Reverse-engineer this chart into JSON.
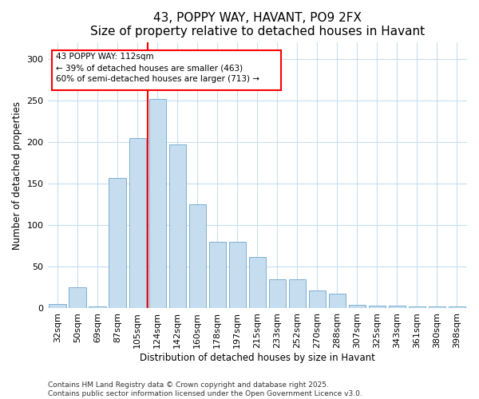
{
  "title": "43, POPPY WAY, HAVANT, PO9 2FX",
  "subtitle": "Size of property relative to detached houses in Havant",
  "xlabel": "Distribution of detached houses by size in Havant",
  "ylabel": "Number of detached properties",
  "categories": [
    "32sqm",
    "50sqm",
    "69sqm",
    "87sqm",
    "105sqm",
    "124sqm",
    "142sqm",
    "160sqm",
    "178sqm",
    "197sqm",
    "215sqm",
    "233sqm",
    "252sqm",
    "270sqm",
    "288sqm",
    "307sqm",
    "325sqm",
    "343sqm",
    "361sqm",
    "380sqm",
    "398sqm"
  ],
  "values": [
    5,
    25,
    2,
    157,
    205,
    252,
    197,
    125,
    80,
    80,
    62,
    35,
    35,
    22,
    18,
    4,
    3,
    3,
    2,
    2,
    2
  ],
  "bar_color": "#c6ddf0",
  "bar_edge_color": "#7ab0d4",
  "bar_edge_width": 0.7,
  "red_line_index": 4.5,
  "annotation_text": "43 POPPY WAY: 112sqm\n← 39% of detached houses are smaller (463)\n60% of semi-detached houses are larger (713) →",
  "annotation_box_facecolor": "white",
  "annotation_box_edgecolor": "red",
  "ylim": [
    0,
    320
  ],
  "yticks": [
    0,
    50,
    100,
    150,
    200,
    250,
    300
  ],
  "background_color": "#ffffff",
  "grid_color": "#c8dff0",
  "footer_line1": "Contains HM Land Registry data © Crown copyright and database right 2025.",
  "footer_line2": "Contains public sector information licensed under the Open Government Licence v3.0.",
  "title_fontsize": 11,
  "tick_fontsize": 8,
  "ylabel_fontsize": 8.5,
  "xlabel_fontsize": 8.5,
  "footer_fontsize": 6.5
}
